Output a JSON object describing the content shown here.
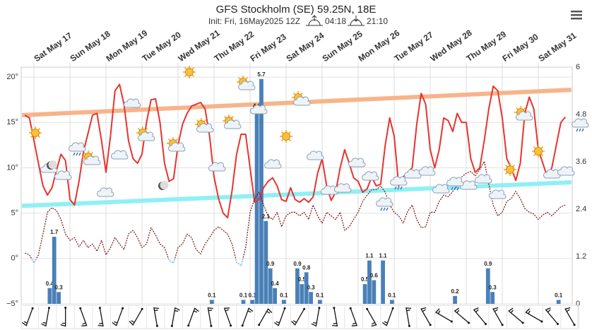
{
  "chart_data": {
    "type": "line",
    "title": "GFS Stockholm (SE) 59.25N, 18E",
    "subtitle": "Init: Fri, 16May2025 12Z",
    "sunrise": "04:18",
    "sunset": "21:10",
    "x": [
      -6,
      -3,
      0,
      3,
      6,
      9,
      12,
      15,
      18,
      21,
      24,
      27,
      30,
      33,
      36,
      39,
      42,
      45,
      48,
      51,
      54,
      57,
      60,
      63,
      66,
      69,
      72,
      75,
      78,
      81,
      84,
      87,
      90,
      93,
      96,
      99,
      102,
      105,
      108,
      111,
      114,
      117,
      120,
      123,
      126,
      129,
      132,
      135,
      138,
      141,
      144,
      147,
      150,
      153,
      156,
      159,
      162,
      165,
      168,
      171,
      174,
      177,
      180,
      183,
      186,
      189,
      192,
      195,
      198,
      201,
      204,
      207,
      210,
      213,
      216,
      219,
      222,
      225,
      228,
      231,
      234,
      237,
      240,
      243,
      246,
      249,
      252,
      255,
      258,
      261,
      264,
      267,
      270,
      273,
      276,
      279,
      282,
      285,
      288,
      291,
      294,
      297,
      300,
      303,
      306,
      309,
      312,
      315,
      318,
      321,
      324,
      327,
      330,
      333,
      336,
      339,
      342,
      345,
      348,
      351,
      354
    ],
    "xlim": [
      -8.5,
      358.6
    ],
    "xticks": [
      {
        "value": 0,
        "label": "Sat May 17"
      },
      {
        "value": 24,
        "label": "Sun May 18"
      },
      {
        "value": 48,
        "label": "Mon May 19"
      },
      {
        "value": 72,
        "label": "Tue May 20"
      },
      {
        "value": 96,
        "label": "Wed May 21"
      },
      {
        "value": 120,
        "label": "Thu May 22"
      },
      {
        "value": 144,
        "label": "Fri May 23"
      },
      {
        "value": 168,
        "label": "Sat May 24"
      },
      {
        "value": 192,
        "label": "Sun May 25"
      },
      {
        "value": 216,
        "label": "Mon May 26"
      },
      {
        "value": 240,
        "label": "Tue May 27"
      },
      {
        "value": 264,
        "label": "Wed May 28"
      },
      {
        "value": 288,
        "label": "Thu May 29"
      },
      {
        "value": 312,
        "label": "Fri May 30"
      },
      {
        "value": 336,
        "label": "Sat May 31"
      }
    ],
    "ylim": [
      -5,
      21.1
    ],
    "yticks": [
      {
        "value": -5,
        "label": "−5°"
      },
      {
        "value": 0,
        "label": "0°"
      },
      {
        "value": 5,
        "label": "5°"
      },
      {
        "value": 10,
        "label": "10°"
      },
      {
        "value": 15,
        "label": "15°"
      },
      {
        "value": 20,
        "label": "20°"
      }
    ],
    "y2lim": [
      0,
      6
    ],
    "y2ticks": [
      0,
      1.2,
      2.4,
      3.6,
      4.8,
      6
    ],
    "grid": true,
    "series": [
      {
        "color": "#e8332f",
        "values": [
          15.8,
          15.5,
          13.0,
          10.5,
          8.0,
          7.0,
          7.8,
          9.7,
          11.5,
          10.8,
          6.5,
          5.9,
          8.5,
          11.8,
          13.8,
          15.8,
          16.0,
          13.0,
          9.5,
          13.5,
          18.5,
          19.2,
          17.0,
          13.0,
          11.0,
          10.5,
          11.5,
          15.0,
          17.5,
          17.6,
          15.0,
          10.5,
          8.5,
          8.8,
          12.5,
          14.8,
          16.0,
          16.8,
          17.0,
          17.2,
          16.5,
          13.5,
          9.0,
          6.6,
          5.0,
          4.5,
          7.5,
          11.5,
          13.7,
          13.7,
          10.0,
          6.2,
          6.5,
          7.8,
          8.5,
          8.9,
          8.0,
          6.5,
          6.3,
          7.8,
          6.5,
          6.2,
          6.6,
          6.2,
          6.8,
          9.4,
          11.0,
          8.0,
          6.4,
          7.3,
          10.0,
          12.0,
          10.5,
          8.9,
          8.5,
          7.3,
          7.7,
          9.0,
          8.0,
          8.2,
          12.5,
          15.5,
          13.5,
          8.0,
          9.0,
          9.5,
          10.0,
          14.8,
          18.2,
          17.0,
          12.0,
          10.0,
          12.0,
          15.5,
          15.2,
          14.0,
          16.0,
          15.0,
          15.0,
          11.0,
          9.5,
          10.0,
          13.0,
          16.5,
          19.0,
          18.5,
          15.5,
          11.0,
          10.0,
          8.6,
          10.5,
          16.0,
          17.8,
          16.5,
          12.0,
          10.5,
          9.0,
          10.0,
          12.5,
          15.0,
          15.6
        ]
      },
      {
        "color": "#7a1010",
        "below_zero_color": "#5aa0d8",
        "dashed": true,
        "values": [
          0.6,
          0.4,
          -0.5,
          0.4,
          2.7,
          5.1,
          5.6,
          5.3,
          4.3,
          2.7,
          2.0,
          2.3,
          1.3,
          2.0,
          1.2,
          1.6,
          0.8,
          2.0,
          0.4,
          1.2,
          2.3,
          1.6,
          1.0,
          2.7,
          3.1,
          2.3,
          1.2,
          1.6,
          3.4,
          2.6,
          1.6,
          1.2,
          -0.2,
          -0.5,
          1.2,
          1.6,
          2.7,
          2.3,
          1.0,
          0.5,
          1.6,
          2.3,
          3.1,
          3.5,
          3.1,
          2.7,
          1.6,
          -0.4,
          -0.8,
          1.2,
          5.1,
          6.6,
          7.3,
          5.9,
          4.7,
          4.3,
          5.1,
          3.5,
          4.7,
          5.1,
          5.1,
          4.7,
          5.1,
          4.3,
          5.9,
          4.7,
          3.9,
          5.1,
          4.7,
          4.3,
          5.1,
          3.1,
          3.5,
          4.3,
          5.1,
          6.3,
          7.0,
          7.6,
          7.6,
          8.0,
          7.3,
          5.9,
          5.1,
          4.7,
          3.9,
          5.2,
          5.9,
          4.3,
          3.4,
          3.5,
          5.1,
          5.1,
          6.3,
          7.0,
          6.8,
          7.4,
          8.0,
          9.0,
          9.4,
          9.6,
          9.1,
          9.8,
          10.7,
          8.2,
          5.9,
          4.7,
          5.1,
          6.3,
          6.6,
          7.4,
          6.6,
          5.5,
          5.1,
          4.9,
          4.3,
          4.8,
          5.1,
          4.7,
          5.2,
          5.7,
          5.9
        ]
      }
    ],
    "trend_lines": [
      {
        "color": "#f7b48a",
        "x": [
          -8,
          358
        ],
        "values": [
          15.8,
          18.6
        ]
      },
      {
        "color": "#8ff0f4",
        "x": [
          -8,
          358
        ],
        "values": [
          5.8,
          8.4
        ]
      }
    ],
    "precipitation": {
      "type": "bar",
      "axis": "y2",
      "color": "#4a80b8",
      "x": [
        10.5,
        13.5,
        16.5,
        118.5,
        139.5,
        145.5,
        148.5,
        151.5,
        154.5,
        157.5,
        160.5,
        166.5,
        175.5,
        178.5,
        181.5,
        184.5,
        190.5,
        220.5,
        223.5,
        226.5,
        232.5,
        238.5,
        280.5,
        302.5,
        305.5,
        349.5
      ],
      "values": [
        0.4,
        1.7,
        0.3,
        0.1,
        0.1,
        0.1,
        4.9,
        5.7,
        2.1,
        0.9,
        0.4,
        0.1,
        0.9,
        0.5,
        0.8,
        0.3,
        0.1,
        0.5,
        1.1,
        0.6,
        1.1,
        0.1,
        0.2,
        0.9,
        0.3,
        0.1
      ]
    },
    "wind": {
      "x": [
        -3,
        9,
        21,
        33,
        45,
        57,
        69,
        81,
        93,
        105,
        117,
        129,
        141,
        153,
        165,
        177,
        189,
        201,
        213,
        225,
        237,
        249,
        261,
        273,
        285,
        297,
        309,
        321,
        333,
        345,
        357
      ],
      "direction": [
        200,
        190,
        180,
        160,
        170,
        200,
        210,
        350,
        10,
        20,
        350,
        340,
        20,
        30,
        200,
        210,
        190,
        170,
        160,
        150,
        200,
        350,
        330,
        300,
        310,
        320,
        330,
        310,
        300,
        320,
        330
      ]
    }
  }
}
